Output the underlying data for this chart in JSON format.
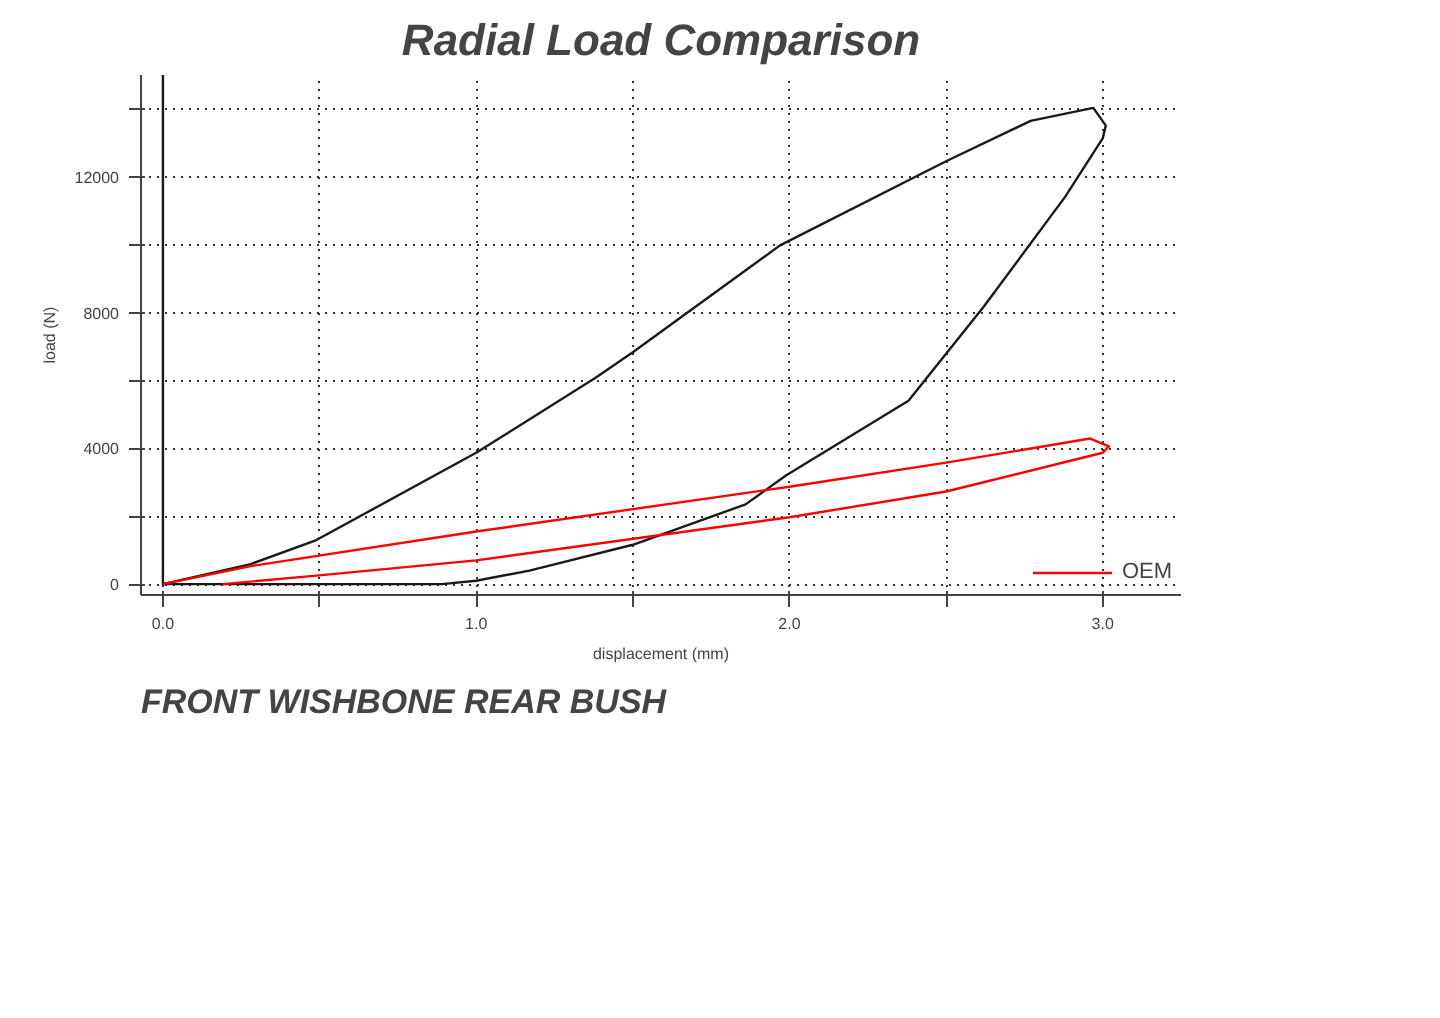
{
  "chart_data": {
    "type": "line",
    "title": "Radial Load Comparison",
    "xlabel": "displacement (mm)",
    "ylabel": "load (N)",
    "annotations": [
      "FRONT WISHBONE REAR BUSH"
    ],
    "xlim": [
      -0.07,
      3.25
    ],
    "ylim": [
      -320,
      15000
    ],
    "xticks": [
      {
        "value": 0,
        "label": "0.0"
      },
      {
        "value": 0.5,
        "label": null
      },
      {
        "value": 1,
        "label": "1.0"
      },
      {
        "value": 1.5,
        "label": null
      },
      {
        "value": 2,
        "label": "2.0"
      },
      {
        "value": 2.5,
        "label": null
      },
      {
        "value": 3,
        "label": "3.0"
      }
    ],
    "yticks": [
      0,
      {
        "value": 2000,
        "label": null
      },
      4000,
      {
        "value": 6000,
        "label": null
      },
      8000,
      {
        "value": 10000,
        "label": null
      },
      12000,
      {
        "value": 14000,
        "label": null
      }
    ],
    "grid": true,
    "legend": "bottom right",
    "series": [
      {
        "color": "#1a1a1a",
        "x": [
          0,
          0,
          0.28,
          0.49,
          1.0,
          1.38,
          1.5,
          1.97,
          2.5,
          2.77,
          2.97,
          3.01,
          3.0,
          2.88,
          2.62,
          2.38,
          1.99,
          1.86,
          1.5,
          1.17,
          1.0,
          0.89,
          0.4,
          0
        ],
        "values": [
          15000,
          0,
          590,
          1300,
          3870,
          6070,
          6830,
          9980,
          12460,
          13650,
          14030,
          13510,
          13130,
          11410,
          8170,
          5400,
          3210,
          2350,
          1160,
          400,
          100,
          0,
          0,
          0
        ]
      },
      {
        "name": "OEM",
        "color": "#ff0000",
        "x": [
          0,
          0.28,
          1.0,
          2.0,
          2.5,
          2.96,
          3.02,
          3.0,
          2.5,
          2.0,
          1.0,
          0.49,
          0.19
        ],
        "values": [
          0,
          530,
          1550,
          2870,
          3580,
          4290,
          4060,
          3870,
          2730,
          1970,
          700,
          250,
          0
        ]
      }
    ]
  }
}
